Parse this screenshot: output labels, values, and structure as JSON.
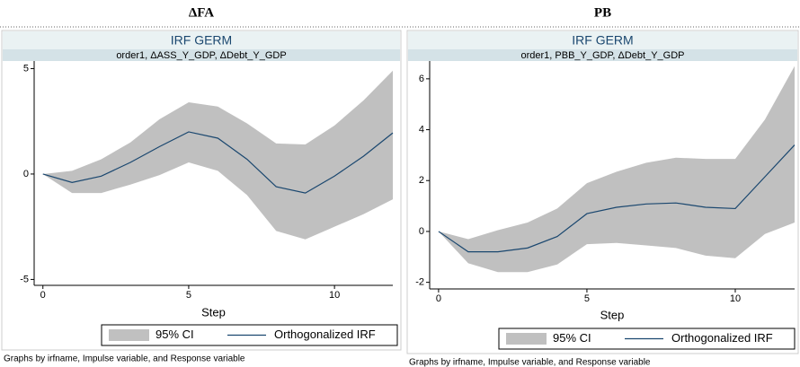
{
  "chart_data": [
    {
      "type": "irf",
      "heading": "ΔFA",
      "title": "IRF GERM",
      "subtitle": "order1, ΔASS_Y_GDP, ΔDebt_Y_GDP",
      "xlabel": "Step",
      "note": "Graphs by irfname, Impulse variable, and Response variable",
      "x": [
        0,
        1,
        2,
        3,
        4,
        5,
        6,
        7,
        8,
        9,
        10,
        11,
        12
      ],
      "series": [
        {
          "name": "95% CI",
          "color": "#c0c0c0",
          "upper": [
            0,
            0.15,
            0.7,
            1.5,
            2.6,
            3.4,
            3.2,
            2.4,
            1.45,
            1.4,
            2.3,
            3.5,
            4.9
          ],
          "lower": [
            0,
            -0.9,
            -0.9,
            -0.5,
            -0.05,
            0.55,
            0.15,
            -1.0,
            -2.7,
            -3.1,
            -2.5,
            -1.9,
            -1.2
          ]
        },
        {
          "name": "Orthogonalized IRF",
          "color": "#1a476f",
          "values": [
            0,
            -0.4,
            -0.1,
            0.55,
            1.3,
            2.0,
            1.7,
            0.7,
            -0.6,
            -0.9,
            -0.1,
            0.85,
            1.95
          ]
        }
      ],
      "xlim": [
        -0.3,
        12
      ],
      "xticks": [
        0,
        5,
        10
      ],
      "ylim": [
        -5.28,
        5.36
      ],
      "yticks": [
        -5,
        0,
        5
      ]
    },
    {
      "type": "irf",
      "heading": "PB",
      "title": "IRF GERM",
      "subtitle": "order1, PBB_Y_GDP, ΔDebt_Y_GDP",
      "xlabel": "Step",
      "note": "Graphs by irfname, Impulse variable, and Response variable",
      "x": [
        0,
        1,
        2,
        3,
        4,
        5,
        6,
        7,
        8,
        9,
        10,
        11,
        12
      ],
      "series": [
        {
          "name": "95% CI",
          "color": "#c0c0c0",
          "upper": [
            0,
            -0.3,
            0.05,
            0.35,
            0.9,
            1.9,
            2.35,
            2.7,
            2.9,
            2.85,
            2.85,
            4.4,
            6.5
          ],
          "lower": [
            0,
            -1.25,
            -1.6,
            -1.6,
            -1.3,
            -0.5,
            -0.45,
            -0.55,
            -0.65,
            -0.95,
            -1.05,
            -0.1,
            0.35
          ]
        },
        {
          "name": "Orthogonalized IRF",
          "color": "#1a476f",
          "values": [
            0,
            -0.8,
            -0.8,
            -0.65,
            -0.2,
            0.7,
            0.95,
            1.08,
            1.12,
            0.95,
            0.9,
            2.15,
            3.4
          ]
        }
      ],
      "xlim": [
        -0.3,
        12
      ],
      "xticks": [
        0,
        5,
        10
      ],
      "ylim": [
        -2.26,
        6.7
      ],
      "yticks": [
        -2,
        0,
        2,
        4,
        6
      ]
    }
  ]
}
